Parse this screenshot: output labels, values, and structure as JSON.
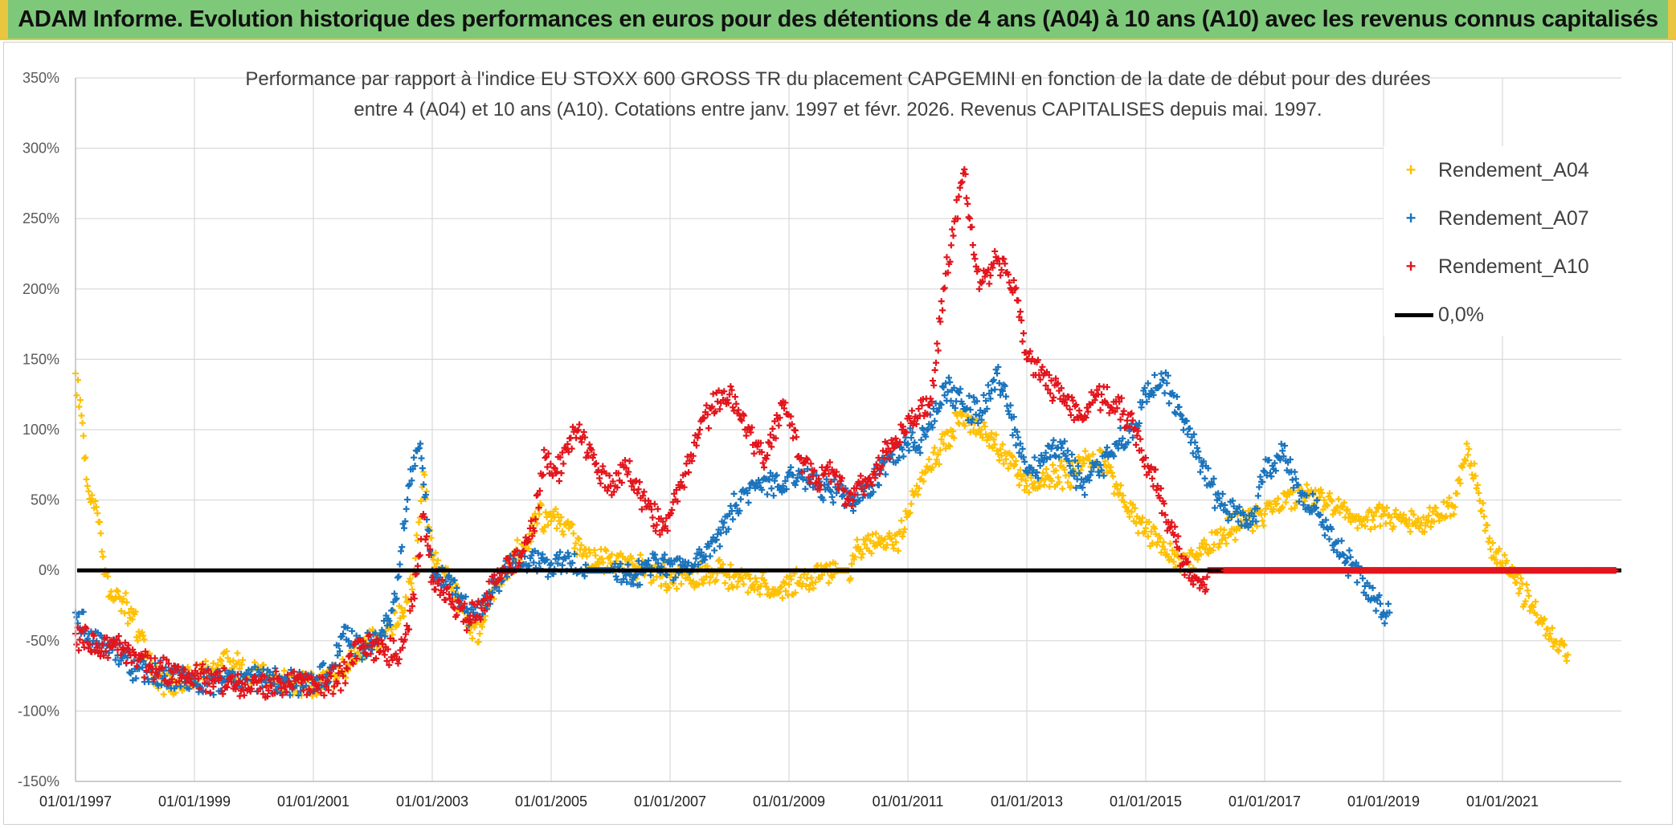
{
  "banner": {
    "text": "ADAM Informe. Evolution historique des performances en euros pour des détentions de 4 ans (A04) à 10 ans (A10) avec les revenus connus capitalisés"
  },
  "chart_data": {
    "type": "scatter",
    "title_line1": "Performance  par rapport à l'indice EU STOXX 600 GROSS TR  du placement CAPGEMINI en fonction de la date de début pour des durées",
    "title_line2": "entre 4 (A04) et 10 ans (A10). Cotations entre janv. 1997 et févr. 2026. Revenus CAPITALISES depuis mai. 1997.",
    "xlabel": "",
    "ylabel": "",
    "x_range": [
      1997.0,
      2023.0
    ],
    "ylim": [
      -150,
      350
    ],
    "y_ticks": [
      350,
      300,
      250,
      200,
      150,
      100,
      50,
      0,
      -50,
      -100,
      -150
    ],
    "y_tick_labels": [
      "350%",
      "300%",
      "250%",
      "200%",
      "150%",
      "100%",
      "50%",
      "0%",
      "-50%",
      "-100%",
      "-150%"
    ],
    "x_ticks": [
      1997,
      1999,
      2001,
      2003,
      2005,
      2007,
      2009,
      2011,
      2013,
      2015,
      2017,
      2019,
      2021
    ],
    "x_tick_labels": [
      "01/01/1997",
      "01/01/1999",
      "01/01/2001",
      "01/01/2003",
      "01/01/2005",
      "01/01/2007",
      "01/01/2009",
      "01/01/2011",
      "01/01/2013",
      "01/01/2015",
      "01/01/2017",
      "01/01/2019",
      "01/01/2021"
    ],
    "grid": true,
    "legend_position": "top-right",
    "reference_line": {
      "name": "0,0%",
      "value": 0,
      "color": "#000000"
    },
    "series": [
      {
        "name": "Rendement_A04",
        "color": "#ffc000",
        "x": [
          1997.0,
          1997.1,
          1997.2,
          1997.35,
          1997.5,
          1997.6,
          1997.75,
          1997.9,
          1998.1,
          1998.3,
          1998.5,
          1998.7,
          1999.0,
          1999.3,
          1999.6,
          1999.9,
          2000.2,
          2000.6,
          2001.0,
          2001.4,
          2001.8,
          2002.2,
          2002.5,
          2002.7,
          2002.85,
          2003.0,
          2003.3,
          2003.6,
          2003.8,
          2004.0,
          2004.3,
          2004.6,
          2004.8,
          2005.0,
          2005.3,
          2005.6,
          2006.0,
          2006.3,
          2006.7,
          2007.0,
          2007.3,
          2007.7,
          2008.0,
          2008.4,
          2008.8,
          2009.0,
          2009.5,
          2009.8,
          2010.0,
          2010.2,
          2010.5,
          2010.8,
          2011.0,
          2011.3,
          2011.6,
          2011.9,
          2012.2,
          2012.5,
          2012.8,
          2013.0,
          2013.4,
          2013.8,
          2014.0,
          2014.3,
          2014.6,
          2015.0,
          2015.3,
          2015.6,
          2016.0,
          2016.3,
          2016.6,
          2017.0,
          2017.3,
          2017.6,
          2018.0,
          2018.3,
          2018.6,
          2019.0,
          2019.3,
          2019.6,
          2019.9,
          2020.2,
          2020.4,
          2020.6,
          2020.8,
          2021.0,
          2021.2,
          2021.5,
          2021.8,
          2022.0,
          2022.1
        ],
        "y": [
          140,
          110,
          60,
          45,
          0,
          -15,
          -20,
          -30,
          -45,
          -70,
          -80,
          -80,
          -75,
          -70,
          -65,
          -72,
          -78,
          -80,
          -82,
          -75,
          -55,
          -45,
          -30,
          0,
          70,
          10,
          -10,
          -40,
          -45,
          -15,
          5,
          20,
          40,
          35,
          30,
          10,
          5,
          5,
          0,
          -5,
          -5,
          0,
          -5,
          -10,
          -15,
          -10,
          -5,
          0,
          0,
          15,
          20,
          20,
          40,
          70,
          90,
          110,
          100,
          85,
          75,
          60,
          65,
          70,
          80,
          75,
          50,
          30,
          20,
          5,
          15,
          25,
          35,
          40,
          45,
          55,
          50,
          45,
          35,
          40,
          35,
          30,
          40,
          45,
          90,
          55,
          15,
          5,
          -5,
          -25,
          -45,
          -50,
          -60
        ]
      },
      {
        "name": "Rendement_A07",
        "color": "#1a74bd",
        "x": [
          1997.0,
          1997.3,
          1997.6,
          1998.0,
          1998.5,
          1999.0,
          1999.5,
          2000.0,
          2000.5,
          2001.0,
          2001.3,
          2001.5,
          2001.8,
          2002.1,
          2002.4,
          2002.6,
          2002.8,
          2003.0,
          2003.3,
          2003.6,
          2003.9,
          2004.2,
          2004.5,
          2004.8,
          2005.0,
          2005.3,
          2005.6,
          2006.0,
          2006.4,
          2006.8,
          2007.2,
          2007.6,
          2008.0,
          2008.3,
          2008.6,
          2008.9,
          2009.2,
          2009.5,
          2009.8,
          2010.1,
          2010.4,
          2010.7,
          2011.0,
          2011.3,
          2011.6,
          2011.9,
          2012.2,
          2012.5,
          2012.8,
          2013.0,
          2013.3,
          2013.6,
          2013.9,
          2014.2,
          2014.5,
          2014.8,
          2015.0,
          2015.3,
          2015.6,
          2015.9,
          2016.2,
          2016.5,
          2016.8,
          2017.0,
          2017.3,
          2017.6,
          2017.9,
          2018.2,
          2018.5,
          2018.8,
          2019.0,
          2019.1
        ],
        "y": [
          -30,
          -50,
          -55,
          -70,
          -75,
          -80,
          -78,
          -76,
          -80,
          -80,
          -70,
          -45,
          -55,
          -50,
          -20,
          60,
          90,
          0,
          -10,
          -30,
          -25,
          0,
          10,
          5,
          5,
          10,
          0,
          0,
          -5,
          5,
          0,
          10,
          40,
          55,
          65,
          60,
          70,
          60,
          55,
          50,
          60,
          80,
          90,
          95,
          130,
          120,
          110,
          140,
          100,
          70,
          80,
          90,
          60,
          70,
          90,
          100,
          125,
          135,
          110,
          80,
          50,
          40,
          35,
          70,
          85,
          55,
          40,
          20,
          0,
          -20,
          -30,
          -30
        ]
      },
      {
        "name": "Rendement_A10",
        "color": "#e3151c",
        "x": [
          1997.0,
          1997.4,
          1997.8,
          1998.3,
          1998.8,
          1999.3,
          1999.8,
          2000.3,
          2000.8,
          2001.2,
          2001.5,
          2001.8,
          2002.2,
          2002.5,
          2002.7,
          2002.85,
          2003.0,
          2003.3,
          2003.6,
          2003.9,
          2004.1,
          2004.3,
          2004.5,
          2004.7,
          2004.9,
          2005.1,
          2005.4,
          2005.7,
          2006.0,
          2006.3,
          2006.6,
          2006.9,
          2007.2,
          2007.5,
          2007.8,
          2008.0,
          2008.3,
          2008.6,
          2008.9,
          2009.2,
          2009.5,
          2009.8,
          2010.0,
          2010.3,
          2010.6,
          2010.9,
          2011.2,
          2011.4,
          2011.6,
          2011.8,
          2011.95,
          2012.2,
          2012.5,
          2012.8,
          2013.0,
          2013.3,
          2013.6,
          2013.9,
          2014.2,
          2014.5,
          2014.8,
          2015.0,
          2015.2,
          2015.4,
          2015.6,
          2015.8,
          2016.0,
          2016.05,
          2016.3,
          2017.0,
          2018.0,
          2019.0,
          2020.0,
          2021.0,
          2022.0,
          2022.9
        ],
        "y": [
          -45,
          -55,
          -55,
          -70,
          -75,
          -78,
          -80,
          -82,
          -80,
          -80,
          -75,
          -50,
          -60,
          -55,
          -20,
          40,
          -5,
          -20,
          -35,
          -20,
          0,
          5,
          10,
          30,
          80,
          70,
          100,
          80,
          60,
          70,
          45,
          30,
          60,
          100,
          120,
          125,
          100,
          80,
          120,
          80,
          65,
          70,
          50,
          60,
          80,
          100,
          110,
          120,
          200,
          250,
          285,
          200,
          220,
          200,
          150,
          140,
          120,
          110,
          125,
          120,
          100,
          80,
          60,
          30,
          10,
          -10,
          -15,
          0,
          0,
          0,
          0,
          0,
          0,
          0,
          0,
          0
        ]
      }
    ]
  },
  "legend": {
    "items": [
      {
        "label": "Rendement_A04",
        "marker": "+"
      },
      {
        "label": "Rendement_A07",
        "marker": "+"
      },
      {
        "label": "Rendement_A10",
        "marker": "+"
      },
      {
        "label": "0,0%",
        "marker": "line"
      }
    ]
  }
}
